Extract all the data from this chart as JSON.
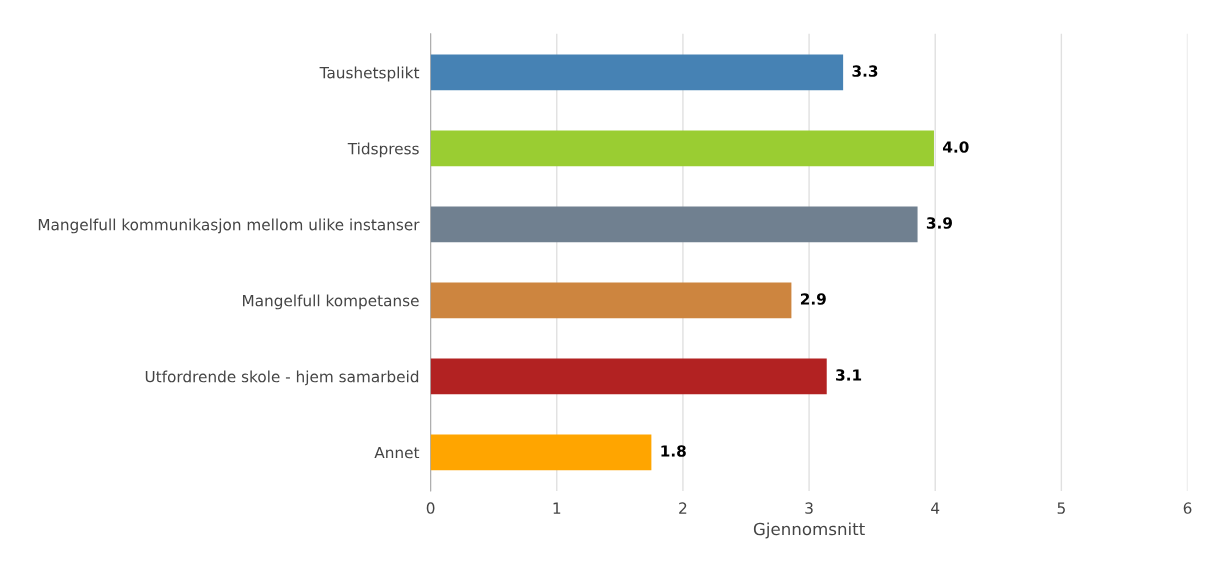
{
  "chart_data": {
    "type": "bar",
    "orientation": "horizontal",
    "xlabel": "Gjennomsnitt",
    "categories": [
      "Taushetsplikt",
      "Tidspress",
      "Mangelfull kommunikasjon mellom ulike instanser",
      "Mangelfull kompetanse",
      "Utfordrende skole - hjem samarbeid",
      "Annet"
    ],
    "values": [
      3.27,
      3.99,
      3.86,
      2.86,
      3.14,
      1.75
    ],
    "value_labels": [
      "3.3",
      "4.0",
      "3.9",
      "2.9",
      "3.1",
      "1.8"
    ],
    "colors": [
      "#4682b4",
      "#9acd32",
      "#708090",
      "#cd853f",
      "#b22222",
      "#ffa500"
    ],
    "xlim": [
      0,
      6
    ],
    "xticks": [
      0,
      1,
      2,
      3,
      4,
      5,
      6
    ],
    "grid": "x",
    "legend": false
  }
}
